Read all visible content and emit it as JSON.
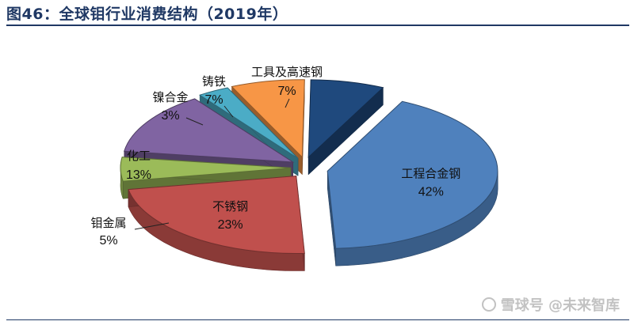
{
  "figure": {
    "title": "图46：全球钼行业消费结构（2019年）"
  },
  "chart_data": {
    "type": "pie",
    "title": "",
    "slices": [
      {
        "label": "工程合金钢",
        "value": 42,
        "value_label": "42%",
        "color": "#4f81bd"
      },
      {
        "label": "不锈钢",
        "value": 23,
        "value_label": "23%",
        "color": "#c0504d"
      },
      {
        "label": "钼金属",
        "value": 5,
        "value_label": "5%",
        "color": "#9bbb59"
      },
      {
        "label": "化工",
        "value": 13,
        "value_label": "13%",
        "color": "#8064a2"
      },
      {
        "label": "镍合金",
        "value": 3,
        "value_label": "3%",
        "color": "#4bacc6"
      },
      {
        "label": "铸铁",
        "value": 7,
        "value_label": "7%",
        "color": "#f79646"
      },
      {
        "label": "工具及高速钢",
        "value": 7,
        "value_label": "7%",
        "color": "#1f497d"
      }
    ],
    "exploded": true,
    "style": "3d",
    "legend": "none"
  },
  "watermark": {
    "text": "雪球号 @未来智库"
  }
}
